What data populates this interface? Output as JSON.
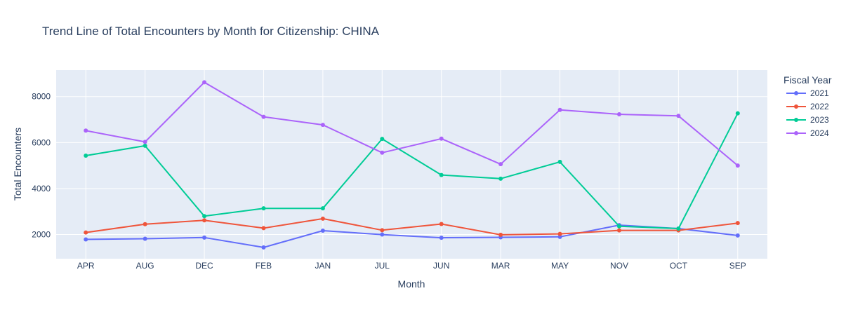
{
  "chart_data": {
    "type": "line",
    "title": "Trend Line of Total Encounters by Month for Citizenship: CHINA",
    "xlabel": "Month",
    "ylabel": "Total Encounters",
    "categories": [
      "APR",
      "AUG",
      "DEC",
      "FEB",
      "JAN",
      "JUL",
      "JUN",
      "MAR",
      "MAY",
      "NOV",
      "OCT",
      "SEP"
    ],
    "ylim": [
      950,
      9150
    ],
    "yticks": [
      2000,
      4000,
      6000,
      8000
    ],
    "legend_title": "Fiscal Year",
    "legend_position": "right",
    "grid": true,
    "series": [
      {
        "name": "2021",
        "color": "#636efa",
        "values": [
          1790,
          1820,
          1870,
          1440,
          2170,
          2000,
          1860,
          1880,
          1900,
          2410,
          2260,
          1960
        ]
      },
      {
        "name": "2022",
        "color": "#ef553b",
        "values": [
          2090,
          2450,
          2620,
          2280,
          2690,
          2190,
          2460,
          1990,
          2030,
          2180,
          2180,
          2500
        ]
      },
      {
        "name": "2023",
        "color": "#00cc96",
        "values": [
          5430,
          5860,
          2800,
          3140,
          3140,
          6160,
          4590,
          4430,
          5160,
          2360,
          2260,
          7270
        ]
      },
      {
        "name": "2024",
        "color": "#ab63fa",
        "values": [
          6520,
          6030,
          8620,
          7120,
          6770,
          5560,
          6170,
          5060,
          7420,
          7230,
          7160,
          5000
        ]
      }
    ]
  }
}
